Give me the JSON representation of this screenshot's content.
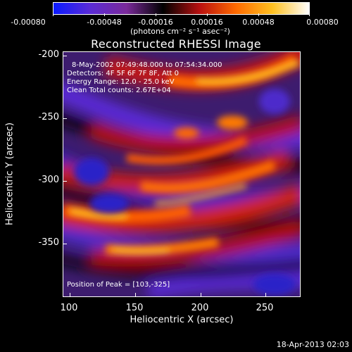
{
  "colorbar": {
    "ticks": [
      "-0.00080",
      "-0.00048",
      "-0.00016",
      "0.00016",
      "0.00048",
      "0.00080"
    ],
    "units": "(photons cm⁻² s⁻¹ asec⁻²)",
    "colors": [
      "#0a1aff",
      "#5a2bd6",
      "#7a2a9a",
      "#000000",
      "#b81010",
      "#ff6a00",
      "#ffc020",
      "#ffffff"
    ]
  },
  "plot": {
    "title": "Reconstructed RHESSI Image",
    "info_lines": [
      "8-May-2002 07:49:48.000 to 07:54:34.000",
      "Detectors: 4F 5F 6F 7F 8F, Att 0",
      "Energy Range: 12.0 - 25.0 keV",
      "Clean     Total counts: 2.67E+04"
    ],
    "peak_text": "Position of Peak = [103,-325]",
    "x_label": "Heliocentric X (arcsec)",
    "y_label": "Heliocentric Y (arcsec)",
    "x_ticks": [
      "100",
      "150",
      "200",
      "250"
    ],
    "y_ticks": [
      "-200",
      "-250",
      "-300",
      "-350"
    ]
  },
  "footer": {
    "date": "18-Apr-2013 02:03"
  }
}
